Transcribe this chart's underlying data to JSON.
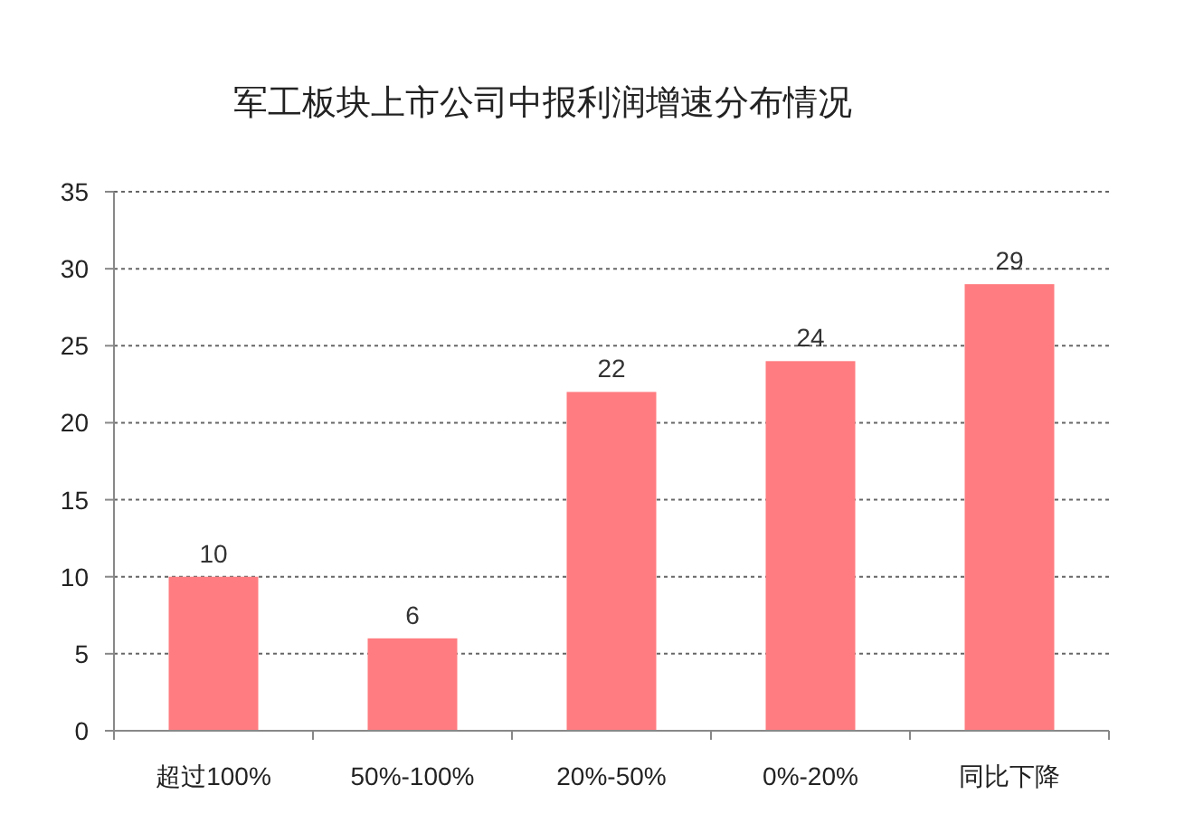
{
  "chart_data": {
    "type": "bar",
    "title": "军工板块上市公司中报利润增速分布情况",
    "categories": [
      "超过100%",
      "50%-100%",
      "20%-50%",
      "0%-20%",
      "同比下降"
    ],
    "values": [
      10,
      6,
      22,
      24,
      29
    ],
    "color": "#ff7c80",
    "ylim": [
      0,
      35
    ],
    "yticks": [
      0,
      5,
      10,
      15,
      20,
      25,
      30,
      35
    ],
    "grid": "y",
    "data_labels": true
  }
}
